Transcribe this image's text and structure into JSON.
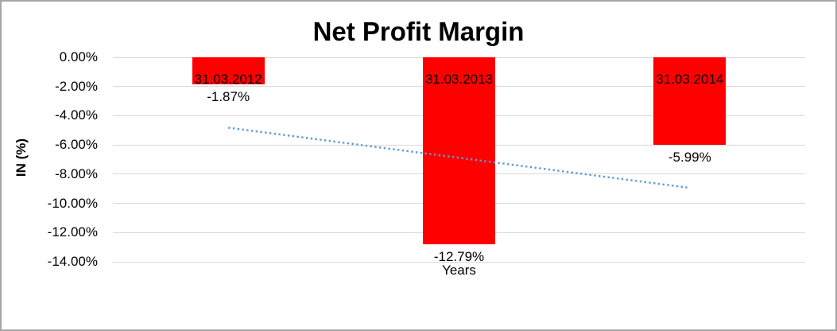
{
  "chart_data": {
    "type": "bar",
    "title": "Net Profit Margin",
    "xlabel": "Years",
    "ylabel": "IN (%)",
    "categories": [
      "31.03.2012",
      "31.03.2013",
      "31.03.2014"
    ],
    "values": [
      -1.87,
      -12.79,
      -5.99
    ],
    "data_labels": [
      "-1.87%",
      "-12.79%",
      "-5.99%"
    ],
    "y_tick_labels": [
      "0.00%",
      "-2.00%",
      "-4.00%",
      "-6.00%",
      "-8.00%",
      "-10.00%",
      "-12.00%",
      "-14.00%"
    ],
    "y_tick_values": [
      0,
      -2,
      -4,
      -6,
      -8,
      -10,
      -12,
      -14
    ],
    "ylim": [
      -14,
      0
    ],
    "grid": true,
    "legend": "none",
    "bar_color": "#ff0000",
    "gridline_color": "#d9d9d9",
    "frame_color": "#a6a6a6",
    "trendline": {
      "type": "linear",
      "style": "dotted",
      "color": "#5b9bd5",
      "start_value": -4.82,
      "end_value": -8.94
    }
  }
}
